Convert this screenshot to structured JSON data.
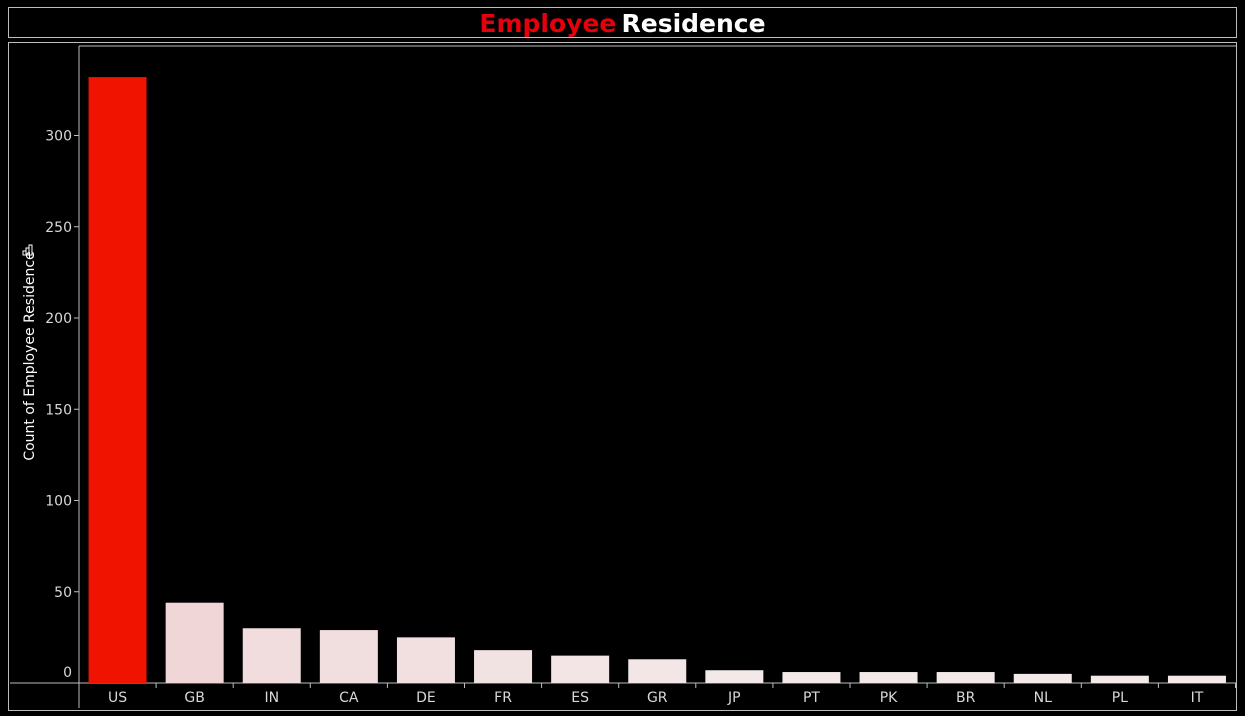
{
  "title": {
    "part1": "Employee",
    "part2": "Residence"
  },
  "chart_data": {
    "type": "bar",
    "title": "Employee Residence",
    "ylabel": "Count of Employee Residence",
    "xlabel": "",
    "categories": [
      "US",
      "GB",
      "IN",
      "CA",
      "DE",
      "FR",
      "ES",
      "GR",
      "JP",
      "PT",
      "PK",
      "BR",
      "NL",
      "PL",
      "IT"
    ],
    "values": [
      332,
      44,
      30,
      29,
      25,
      18,
      15,
      13,
      7,
      6,
      6,
      6,
      5,
      4,
      4
    ],
    "ylim": [
      0,
      350
    ],
    "yticks": [
      0,
      50,
      100,
      150,
      200,
      250,
      300
    ],
    "grid": false,
    "colors": {
      "highlight": "#f01400",
      "base": "#f0d6d6",
      "light": "#f4ecec"
    }
  }
}
